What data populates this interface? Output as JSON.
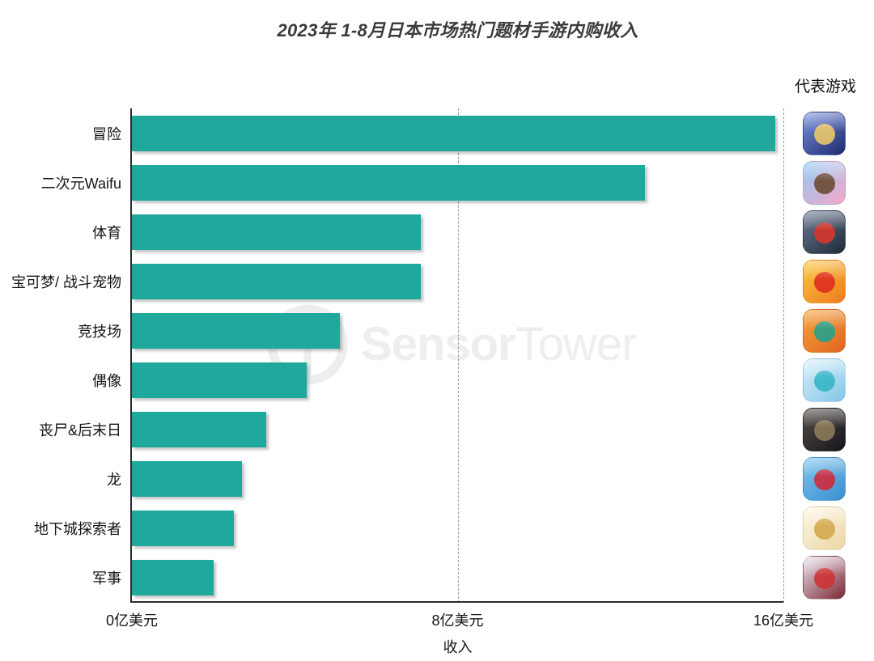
{
  "title": {
    "text": "2023年 1-8月日本市场热门题材手游内购收入"
  },
  "legend": {
    "label": "代表游戏"
  },
  "watermark": {
    "brand_bold": "Sensor",
    "brand_light": "Tower"
  },
  "colors": {
    "bar": "#1fa99c",
    "axis": "#2b2b2b",
    "grid": "#9b9b9b",
    "title_text": "#3b3b3b",
    "label_text": "#151515",
    "watermark": "#eeeeee",
    "background": "#ffffff"
  },
  "chart_data": {
    "type": "bar",
    "orientation": "horizontal",
    "title": "2023年 1-8月日本市场热门题材手游内购收入",
    "xlabel": "收入",
    "unit": "亿美元",
    "xlim": [
      0,
      16
    ],
    "xticks": [
      {
        "value": 0,
        "label": "0亿美元"
      },
      {
        "value": 8,
        "label": "8亿美元"
      },
      {
        "value": 16,
        "label": "16亿美元"
      }
    ],
    "gridlines_at": [
      8,
      16
    ],
    "grid_style": "dashed-vertical",
    "legend_title": "代表游戏",
    "legend_position": "right",
    "bar_color": "#1fa99c",
    "categories": [
      "冒险",
      "二次元Waifu",
      "体育",
      "宝可梦/ 战斗宠物",
      "竞技场",
      "偶像",
      "丧尸&后末日",
      "龙",
      "地下城探索者",
      "军事"
    ],
    "values": [
      15.8,
      12.6,
      7.1,
      7.1,
      5.1,
      4.3,
      3.3,
      2.7,
      2.5,
      2.0
    ],
    "representative_game_icons": [
      {
        "icon_name": "fate-grand-order-8th-anniversary-icon",
        "category": "冒险",
        "gradient": [
          "#7b90dd",
          "#1c2a70"
        ],
        "accent": "#e9c76a"
      },
      {
        "icon_name": "uma-musume-pretty-derby-icon",
        "category": "二次元Waifu",
        "gradient": [
          "#8ec9f5",
          "#f4a8c8"
        ],
        "accent": "#6b4a33"
      },
      {
        "icon_name": "konami-pro-baseball-spirits-icon",
        "category": "体育",
        "gradient": [
          "#6b7b95",
          "#1f2937"
        ],
        "accent": "#d6362c"
      },
      {
        "icon_name": "monster-strike-10th-anniversary-icon",
        "category": "宝可梦/ 战斗宠物",
        "gradient": [
          "#f9c841",
          "#ef7a1e"
        ],
        "accent": "#dd2f1d"
      },
      {
        "icon_name": "one-piece-game-icon",
        "category": "竞技场",
        "gradient": [
          "#f4a43c",
          "#e06420"
        ],
        "accent": "#27a08a"
      },
      {
        "icon_name": "project-sekai-hatsune-miku-icon",
        "category": "偶像",
        "gradient": [
          "#d8effa",
          "#84c6e8"
        ],
        "accent": "#36b6c8"
      },
      {
        "icon_name": "resident-evil-collab-icon",
        "category": "丧尸&后末日",
        "gradient": [
          "#56504a",
          "#141419"
        ],
        "accent": "#8b7a58"
      },
      {
        "icon_name": "puzzle-and-dragons-icon",
        "category": "龙",
        "gradient": [
          "#7cc4ef",
          "#3a8fd0"
        ],
        "accent": "#cf2b3c"
      },
      {
        "icon_name": "one-piece-bounty-rush-gear5-icon",
        "category": "地下城探索者",
        "gradient": [
          "#fdf7e6",
          "#ecd6a2"
        ],
        "accent": "#d2a94e"
      },
      {
        "icon_name": "nikke-fate-stay-night-collab-icon",
        "category": "军事",
        "gradient": [
          "#e9e3ee",
          "#7c2733"
        ],
        "accent": "#cc3333"
      }
    ]
  }
}
